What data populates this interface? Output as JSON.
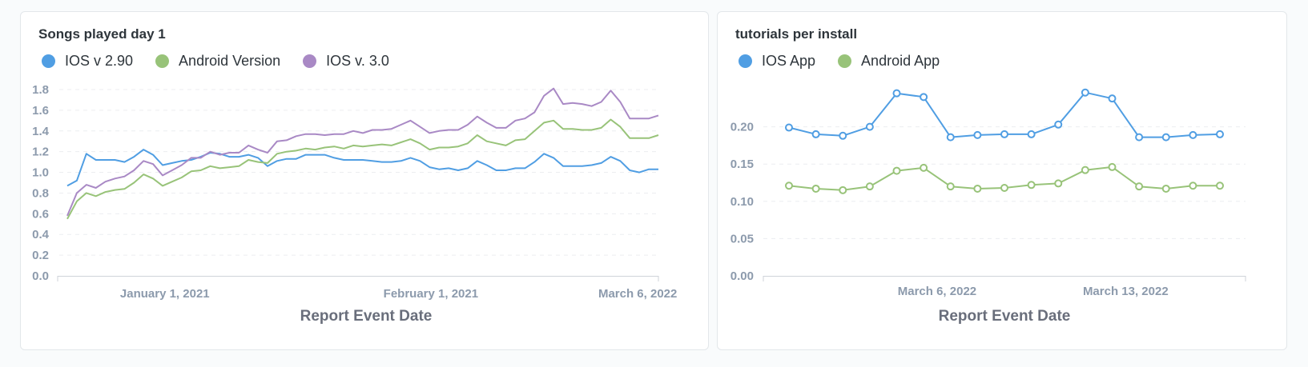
{
  "charts": [
    {
      "id": "songs",
      "title": "Songs played day 1",
      "legend": [
        {
          "name": "IOS v 2.90",
          "color": "#509ee3"
        },
        {
          "name": "Android Version",
          "color": "#98c379"
        },
        {
          "name": "IOS v. 3.0",
          "color": "#a989c5"
        }
      ],
      "x_label": "Report Event Date",
      "x_ticks": [
        "January 1, 2021",
        "February 1, 2021",
        "March 6, 2022"
      ],
      "y_ticks": [
        "0.0",
        "0.2",
        "0.4",
        "0.6",
        "0.8",
        "1.0",
        "1.2",
        "1.4",
        "1.6",
        "1.8"
      ]
    },
    {
      "id": "tutorials",
      "title": "tutorials per install",
      "legend": [
        {
          "name": "IOS App",
          "color": "#509ee3"
        },
        {
          "name": "Android App",
          "color": "#98c379"
        }
      ],
      "x_label": "Report Event Date",
      "x_ticks": [
        "March 6, 2022",
        "March 13, 2022"
      ],
      "y_ticks": [
        "0.00",
        "0.05",
        "0.10",
        "0.15",
        "0.20"
      ]
    }
  ],
  "chart_data": [
    {
      "type": "line",
      "title": "Songs played day 1",
      "xlabel": "Report Event Date",
      "ylabel": "",
      "ylim": [
        0,
        1.8
      ],
      "x_tick_labels": [
        "January 1, 2021",
        "February 1, 2021",
        "March 6, 2022"
      ],
      "series": [
        {
          "name": "IOS v 2.90",
          "color": "#509ee3",
          "values": [
            0.87,
            0.92,
            1.18,
            1.12,
            1.12,
            1.12,
            1.1,
            1.15,
            1.22,
            1.17,
            1.07,
            1.09,
            1.11,
            1.12,
            1.15,
            1.19,
            1.18,
            1.15,
            1.15,
            1.17,
            1.14,
            1.06,
            1.11,
            1.13,
            1.13,
            1.17,
            1.17,
            1.17,
            1.14,
            1.12,
            1.12,
            1.12,
            1.11,
            1.1,
            1.1,
            1.11,
            1.14,
            1.11,
            1.05,
            1.03,
            1.04,
            1.02,
            1.04,
            1.11,
            1.07,
            1.02,
            1.02,
            1.04,
            1.04,
            1.1,
            1.18,
            1.14,
            1.06,
            1.06,
            1.06,
            1.07,
            1.09,
            1.15,
            1.11,
            1.02,
            1.0,
            1.03,
            1.03
          ]
        },
        {
          "name": "Android Version",
          "color": "#98c379",
          "values": [
            0.55,
            0.72,
            0.8,
            0.77,
            0.81,
            0.83,
            0.84,
            0.9,
            0.98,
            0.94,
            0.87,
            0.91,
            0.95,
            1.01,
            1.02,
            1.06,
            1.04,
            1.05,
            1.06,
            1.12,
            1.1,
            1.09,
            1.18,
            1.2,
            1.21,
            1.23,
            1.22,
            1.24,
            1.25,
            1.23,
            1.26,
            1.25,
            1.26,
            1.27,
            1.26,
            1.29,
            1.32,
            1.28,
            1.22,
            1.24,
            1.24,
            1.25,
            1.28,
            1.36,
            1.3,
            1.28,
            1.26,
            1.31,
            1.32,
            1.4,
            1.48,
            1.5,
            1.42,
            1.42,
            1.41,
            1.41,
            1.43,
            1.51,
            1.44,
            1.33,
            1.33,
            1.33,
            1.36
          ]
        },
        {
          "name": "IOS v. 3.0",
          "color": "#a989c5",
          "values": [
            0.58,
            0.8,
            0.88,
            0.85,
            0.91,
            0.94,
            0.96,
            1.02,
            1.11,
            1.08,
            0.97,
            1.02,
            1.07,
            1.14,
            1.14,
            1.2,
            1.17,
            1.19,
            1.19,
            1.26,
            1.22,
            1.19,
            1.3,
            1.31,
            1.35,
            1.37,
            1.37,
            1.36,
            1.37,
            1.37,
            1.4,
            1.38,
            1.41,
            1.41,
            1.42,
            1.46,
            1.5,
            1.44,
            1.38,
            1.4,
            1.41,
            1.41,
            1.46,
            1.54,
            1.48,
            1.43,
            1.43,
            1.5,
            1.52,
            1.58,
            1.74,
            1.81,
            1.66,
            1.67,
            1.66,
            1.64,
            1.68,
            1.79,
            1.68,
            1.52,
            1.52,
            1.52,
            1.55
          ]
        }
      ]
    },
    {
      "type": "line",
      "title": "tutorials per install",
      "xlabel": "Report Event Date",
      "ylabel": "",
      "ylim": [
        0,
        0.25
      ],
      "x_tick_labels": [
        "March 6, 2022",
        "March 13, 2022"
      ],
      "series": [
        {
          "name": "IOS App",
          "color": "#509ee3",
          "values": [
            0.199,
            0.19,
            0.188,
            0.2,
            0.245,
            0.24,
            0.186,
            0.189,
            0.19,
            0.19,
            0.203,
            0.246,
            0.238,
            0.186,
            0.186,
            0.189,
            0.19
          ]
        },
        {
          "name": "Android App",
          "color": "#98c379",
          "values": [
            0.121,
            0.117,
            0.115,
            0.12,
            0.141,
            0.145,
            0.12,
            0.117,
            0.118,
            0.122,
            0.124,
            0.142,
            0.146,
            0.12,
            0.117,
            0.121,
            0.121
          ]
        }
      ]
    }
  ]
}
